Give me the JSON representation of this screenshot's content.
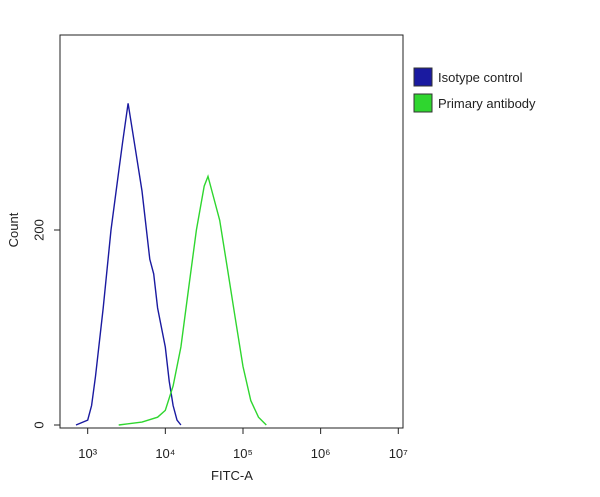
{
  "chart_data": {
    "type": "line",
    "xlabel": "FITC-A",
    "ylabel": "Count",
    "xscale": "log",
    "xlim": [
      440,
      11500000
    ],
    "xticks": [
      {
        "value": 1000,
        "label": "10³"
      },
      {
        "value": 10000,
        "label": "10⁴"
      },
      {
        "value": 100000,
        "label": "10⁵"
      },
      {
        "value": 1000000,
        "label": "10⁶"
      },
      {
        "value": 10000000,
        "label": "10⁷"
      }
    ],
    "ylim": [
      0,
      400
    ],
    "yticks": [
      0,
      200
    ],
    "legend": "outside-right",
    "series": [
      {
        "name": "Isotype control",
        "color": "#1a1aa0",
        "x": [
          708,
          1000,
          1122,
          1259,
          1585,
          1995,
          2512,
          2818,
          3311,
          3981,
          5012,
          6310,
          7079,
          7943,
          10000,
          11220,
          12589,
          14125,
          15849
        ],
        "values": [
          0,
          5,
          20,
          50,
          120,
          200,
          260,
          290,
          330,
          290,
          240,
          170,
          155,
          120,
          80,
          45,
          20,
          5,
          0
        ]
      },
      {
        "name": "Primary antibody",
        "color": "#2fd62f",
        "x": [
          2512,
          5012,
          7943,
          10000,
          12589,
          15849,
          19953,
          25119,
          31623,
          35481,
          39811,
          50119,
          63096,
          79433,
          100000,
          125893,
          158489,
          199526
        ],
        "values": [
          0,
          3,
          8,
          15,
          40,
          80,
          140,
          200,
          245,
          255,
          240,
          210,
          160,
          110,
          60,
          25,
          8,
          0
        ]
      }
    ]
  }
}
